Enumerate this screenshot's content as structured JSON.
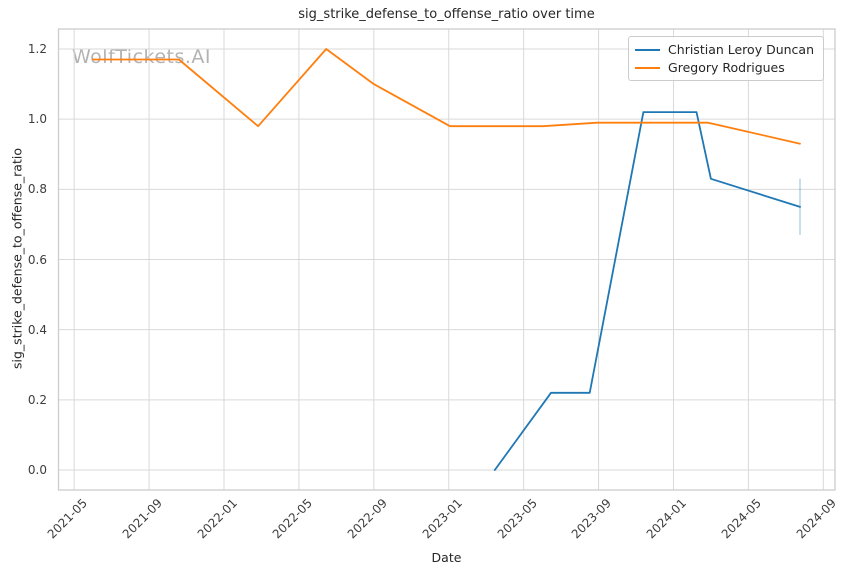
{
  "watermark": "WolfTickets.AI",
  "colors": {
    "series_blue": "#1f77b4",
    "series_orange": "#ff7f0e",
    "grid": "#d9d9d9",
    "spine": "#cccccc",
    "watermark": "#b3b3b3",
    "text": "#262626",
    "tick_text": "#3d3d3d",
    "error_bar_opacity": 0.3
  },
  "chart_data": {
    "type": "line",
    "title": "sig_strike_defense_to_offense_ratio over time",
    "xlabel": "Date",
    "ylabel": "sig_strike_defense_to_offense_ratio",
    "grid": true,
    "legend_position": "upper right",
    "x_tick_labels": [
      "2021-05",
      "2021-09",
      "2022-01",
      "2022-05",
      "2022-09",
      "2023-01",
      "2023-05",
      "2023-09",
      "2024-01",
      "2024-05",
      "2024-09"
    ],
    "y_tick_labels": [
      "0.0",
      "0.2",
      "0.4",
      "0.6",
      "0.8",
      "1.0",
      "1.2"
    ],
    "xlim": [
      "2021-04-06",
      "2024-09-20"
    ],
    "ylim": [
      -0.057,
      1.257
    ],
    "series": [
      {
        "name": "Christian Leroy Duncan",
        "color": "#1f77b4",
        "x": [
          "2023-03-15",
          "2023-06-15",
          "2023-08-17",
          "2023-11-13",
          "2024-02-08",
          "2024-03-01",
          "2024-07-24"
        ],
        "y": [
          0.0,
          0.22,
          0.22,
          1.02,
          1.02,
          0.83,
          0.75
        ],
        "error_bar": {
          "x": "2024-07-24",
          "y_low": 0.67,
          "y_high": 0.83
        }
      },
      {
        "name": "Gregory Rodrigues",
        "color": "#ff7f0e",
        "x": [
          "2021-06-01",
          "2021-10-19",
          "2022-02-26",
          "2022-06-15",
          "2022-09-01",
          "2023-01-03",
          "2023-06-02",
          "2023-08-29",
          "2024-02-27",
          "2024-07-24"
        ],
        "y": [
          1.17,
          1.17,
          0.98,
          1.2,
          1.1,
          0.98,
          0.98,
          0.99,
          0.99,
          0.93
        ],
        "error_bar": null
      }
    ]
  }
}
